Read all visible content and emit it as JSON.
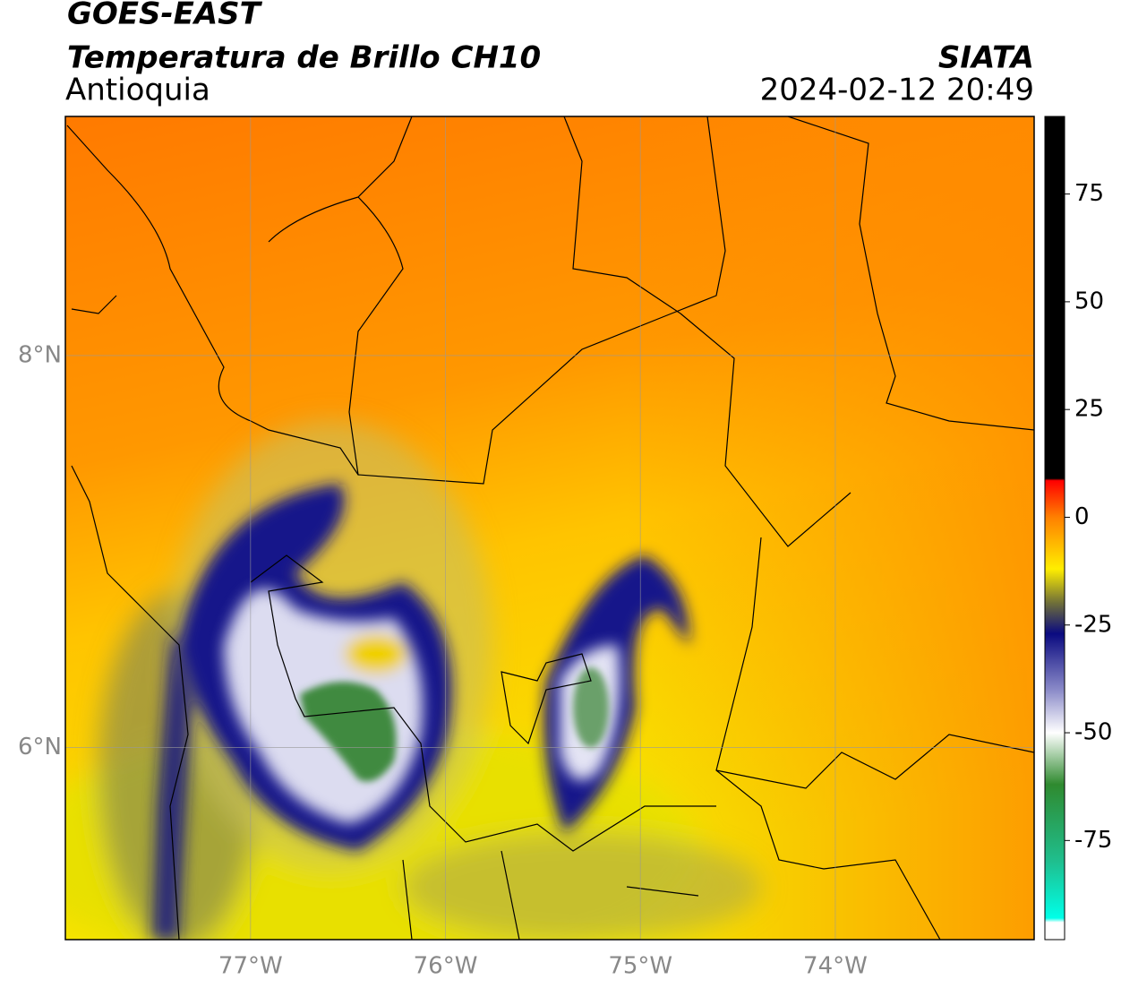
{
  "header": {
    "title": "GOES-EAST",
    "subtitle": "Temperatura de Brillo CH10",
    "region": "Antioquia",
    "source": "SIATA",
    "datetime": "2024-02-12 20:49"
  },
  "map": {
    "xlim": [
      -77.95,
      -72.98
    ],
    "ylim": [
      5.02,
      9.22
    ],
    "xticks": [
      {
        "value": -77,
        "label": "77°W"
      },
      {
        "value": -76,
        "label": "76°W"
      },
      {
        "value": -75,
        "label": "75°W"
      },
      {
        "value": -74,
        "label": "74°W"
      }
    ],
    "yticks": [
      {
        "value": 8,
        "label": "8°N"
      },
      {
        "value": 6,
        "label": "6°N"
      }
    ],
    "grid": true
  },
  "colorbar": {
    "lim": [
      -98,
      93
    ],
    "ticks": [
      75,
      50,
      25,
      0,
      -25,
      -50,
      -75
    ],
    "stops": [
      {
        "value": 93,
        "color": "#000000"
      },
      {
        "value": 9,
        "color": "#000000"
      },
      {
        "value": 8.5,
        "color": "#ff0000"
      },
      {
        "value": 0,
        "color": "#ff8000"
      },
      {
        "value": -12,
        "color": "#ffee00"
      },
      {
        "value": -20,
        "color": "#6d6d3a"
      },
      {
        "value": -27,
        "color": "#0a0a80"
      },
      {
        "value": -40,
        "color": "#8a8ac8"
      },
      {
        "value": -50,
        "color": "#ffffff"
      },
      {
        "value": -62,
        "color": "#2f8a2f"
      },
      {
        "value": -80,
        "color": "#1fbf8f"
      },
      {
        "value": -93,
        "color": "#00ffe8"
      },
      {
        "value": -94,
        "color": "#ffffff"
      },
      {
        "value": -98,
        "color": "#ffffff"
      }
    ]
  }
}
